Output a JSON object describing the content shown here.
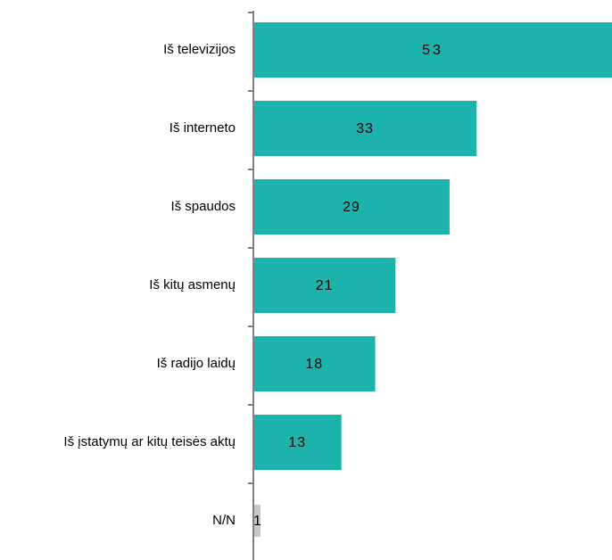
{
  "chart_data": {
    "type": "bar",
    "orientation": "horizontal",
    "categories": [
      "Iš televizijos",
      "Iš interneto",
      "Iš spaudos",
      "Iš kitų asmenų",
      "Iš radijo laidų",
      "Iš įstatymų ar kitų teisės aktų",
      "N/N"
    ],
    "values": [
      53,
      33,
      29,
      21,
      18,
      13,
      1
    ],
    "data_labels": [
      "53",
      "33",
      "29",
      "21",
      "18",
      "13",
      "1"
    ],
    "title": "",
    "xlabel": "",
    "ylabel": "",
    "grid": false,
    "legend": "none",
    "colors": {
      "bar": "#1db3ad",
      "na_bar": "#c8c8c8",
      "axis": "#808080",
      "text": "#000000"
    }
  }
}
